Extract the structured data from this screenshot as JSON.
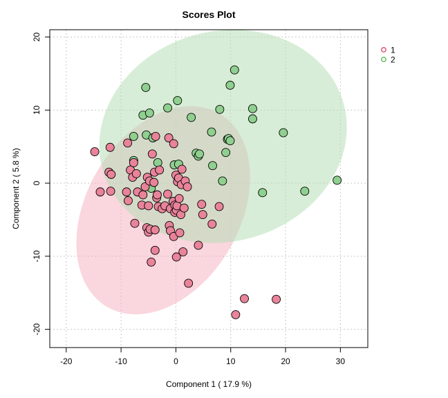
{
  "chart_data": {
    "type": "scatter",
    "title": "Scores Plot",
    "xlabel": "Component 1 ( 17.9 %)",
    "ylabel": "Component 2 ( 5.8 %)",
    "xlim": [
      -23,
      35
    ],
    "ylim": [
      -22.5,
      21
    ],
    "xticks": [
      -20,
      -10,
      0,
      10,
      20,
      30
    ],
    "yticks": [
      -20,
      -10,
      0,
      10,
      20
    ],
    "grid": true,
    "legend_position": "top-right",
    "series": [
      {
        "name": "1",
        "point_color": "#e8839a",
        "legend_color": "#d6294f",
        "ellipse_color": "#f5b5c3",
        "ellipse": {
          "cx": -2.3,
          "cy": -3.7,
          "rx": 20.4,
          "ry": 10.5,
          "angle_deg": 120
        },
        "points": [
          [
            -14.8,
            4.3
          ],
          [
            -13.8,
            -1.2
          ],
          [
            -12.2,
            1.5
          ],
          [
            -11.8,
            1.2
          ],
          [
            -11.9,
            -1.1
          ],
          [
            -12.0,
            4.9
          ],
          [
            -8.8,
            5.5
          ],
          [
            -9.0,
            -1.2
          ],
          [
            -8.7,
            -2.4
          ],
          [
            -8.3,
            1.8
          ],
          [
            -7.9,
            0.8
          ],
          [
            -7.7,
            2.8
          ],
          [
            -7.5,
            -5.5
          ],
          [
            -7.2,
            1.3
          ],
          [
            -7.0,
            -1.2
          ],
          [
            -6.2,
            -3.0
          ],
          [
            -6.0,
            -1.6
          ],
          [
            -5.6,
            -0.5
          ],
          [
            -5.2,
            0.8
          ],
          [
            -5.3,
            -6.1
          ],
          [
            -5.0,
            -6.7
          ],
          [
            -5.0,
            -3.1
          ],
          [
            -4.8,
            0.3
          ],
          [
            -4.5,
            -10.8
          ],
          [
            -4.7,
            -6.3
          ],
          [
            -4.3,
            4.0
          ],
          [
            -4.0,
            0.1
          ],
          [
            -3.9,
            1.5
          ],
          [
            -3.8,
            -6.4
          ],
          [
            -3.8,
            -9.2
          ],
          [
            -3.7,
            6.4
          ],
          [
            -3.5,
            -2.0
          ],
          [
            -3.4,
            -1.6
          ],
          [
            -3.2,
            -3.2
          ],
          [
            -3.0,
            1.8
          ],
          [
            -2.5,
            -3.5
          ],
          [
            -2.0,
            -3.1
          ],
          [
            -1.5,
            -1.5
          ],
          [
            -1.3,
            6.2
          ],
          [
            -1.2,
            -5.8
          ],
          [
            -1.0,
            -3.5
          ],
          [
            -1.0,
            -6.5
          ],
          [
            -0.5,
            -2.5
          ],
          [
            -0.4,
            -7.3
          ],
          [
            -0.2,
            -4.0
          ],
          [
            -0.4,
            5.4
          ],
          [
            -0.2,
            -3.0
          ],
          [
            0.0,
            1.1
          ],
          [
            0.1,
            -3.7
          ],
          [
            0.1,
            -10.1
          ],
          [
            0.2,
            -3.1
          ],
          [
            0.3,
            0.2
          ],
          [
            0.5,
            0.7
          ],
          [
            0.6,
            -2.1
          ],
          [
            0.7,
            -6.8
          ],
          [
            0.9,
            -4.3
          ],
          [
            1.0,
            -0.2
          ],
          [
            1.1,
            1.9
          ],
          [
            1.3,
            -9.4
          ],
          [
            1.5,
            -3.4
          ],
          [
            1.7,
            0.3
          ],
          [
            2.1,
            -0.5
          ],
          [
            2.3,
            -13.7
          ],
          [
            4.1,
            -8.5
          ],
          [
            4.7,
            -2.9
          ],
          [
            4.9,
            -4.3
          ],
          [
            6.6,
            -5.6
          ],
          [
            7.9,
            -3.2
          ],
          [
            10.9,
            -18.0
          ],
          [
            12.5,
            -15.8
          ],
          [
            18.3,
            -15.9
          ]
        ]
      },
      {
        "name": "2",
        "point_color": "#8fcf8f",
        "legend_color": "#3aaa3a",
        "ellipse_color": "#b6dfb6",
        "ellipse": {
          "cx": 8.6,
          "cy": 6.4,
          "rx": 22.8,
          "ry": 14.4,
          "angle_deg": -15
        },
        "points": [
          [
            -7.7,
            6.4
          ],
          [
            -7.7,
            3.1
          ],
          [
            -6.0,
            9.3
          ],
          [
            -5.5,
            13.1
          ],
          [
            -5.4,
            6.6
          ],
          [
            -4.8,
            9.6
          ],
          [
            -4.5,
            -0.7
          ],
          [
            -4.2,
            6.2
          ],
          [
            -3.3,
            2.8
          ],
          [
            -1.5,
            10.3
          ],
          [
            -0.3,
            2.5
          ],
          [
            0.3,
            11.3
          ],
          [
            0.5,
            2.6
          ],
          [
            2.8,
            9.0
          ],
          [
            3.7,
            4.1
          ],
          [
            4.1,
            3.7
          ],
          [
            4.3,
            4.0
          ],
          [
            6.5,
            7.0
          ],
          [
            6.7,
            2.4
          ],
          [
            8.0,
            10.1
          ],
          [
            8.5,
            0.3
          ],
          [
            9.1,
            4.2
          ],
          [
            9.4,
            6.0
          ],
          [
            9.6,
            6.1
          ],
          [
            9.9,
            5.8
          ],
          [
            9.9,
            13.4
          ],
          [
            10.7,
            15.5
          ],
          [
            14.0,
            10.2
          ],
          [
            14.0,
            8.8
          ],
          [
            15.8,
            -1.3
          ],
          [
            19.6,
            6.9
          ],
          [
            23.5,
            -1.1
          ],
          [
            29.4,
            0.4
          ]
        ]
      }
    ]
  }
}
